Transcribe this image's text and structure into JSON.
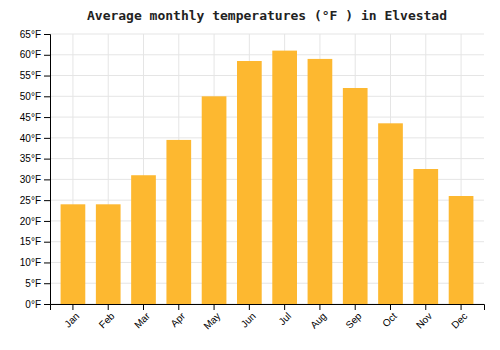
{
  "chart_data": {
    "type": "bar",
    "title": "Average monthly temperatures (°F ) in Elvestad",
    "categories": [
      "Jan",
      "Feb",
      "Mar",
      "Apr",
      "May",
      "Jun",
      "Jul",
      "Aug",
      "Sep",
      "Oct",
      "Nov",
      "Dec"
    ],
    "values": [
      24,
      24,
      31,
      39.5,
      50,
      58.5,
      61,
      59,
      52,
      43.5,
      32.5,
      26
    ],
    "color": "#FDB830",
    "ylim": [
      0,
      65
    ],
    "yticks": [
      {
        "value": 0,
        "label": "0°F"
      },
      {
        "value": 5,
        "label": "5°F"
      },
      {
        "value": 10,
        "label": "10°F"
      },
      {
        "value": 15,
        "label": "15°F"
      },
      {
        "value": 20,
        "label": "20°F"
      },
      {
        "value": 25,
        "label": "25°F"
      },
      {
        "value": 30,
        "label": "30°F"
      },
      {
        "value": 35,
        "label": "35°F"
      },
      {
        "value": 40,
        "label": "40°F"
      },
      {
        "value": 45,
        "label": "45°F"
      },
      {
        "value": 50,
        "label": "50°F"
      },
      {
        "value": 55,
        "label": "55°F"
      },
      {
        "value": 60,
        "label": "60°F"
      },
      {
        "value": 65,
        "label": "65°F"
      }
    ],
    "grid": true
  }
}
